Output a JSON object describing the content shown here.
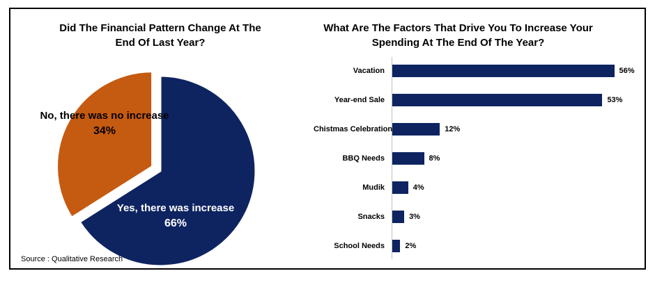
{
  "source_note": "Source : Qualitative Research",
  "colors": {
    "navy": "#0E2461",
    "orange": "#C55A11",
    "axis": "#BFBFBF",
    "border": "#000000"
  },
  "chart_data": [
    {
      "type": "pie",
      "title": "Did The Financial Pattern Change At The End Of Last Year?",
      "title_lines": [
        "Did The Financial Pattern Change At The",
        "End Of Last Year?"
      ],
      "start_angle_deg": 0,
      "direction": "clockwise",
      "legend": "none",
      "slices": [
        {
          "id": "yes",
          "label": "Yes, there was increase",
          "value": 66,
          "value_label": "66%",
          "color": "#0E2461",
          "label_color": "#FFFFFF",
          "exploded": false
        },
        {
          "id": "no",
          "label": "No, there was no increase",
          "value": 34,
          "value_label": "34%",
          "color": "#C55A11",
          "label_color": "#000000",
          "exploded": true
        }
      ]
    },
    {
      "type": "bar",
      "orientation": "horizontal",
      "title": "What Are The Factors That Drive You To Increase Your Spending At The End Of The Year?",
      "title_lines": [
        "What Are The Factors That Drive You To Increase Your",
        "Spending At The End Of The Year?"
      ],
      "categories": [
        "Vacation",
        "Year-end Sale",
        "Chistmas Celebration",
        "BBQ Needs",
        "Mudik",
        "Snacks",
        "School Needs"
      ],
      "values": [
        56,
        53,
        12,
        8,
        4,
        3,
        2
      ],
      "value_labels": [
        "56%",
        "53%",
        "12%",
        "8%",
        "4%",
        "3%",
        "2%"
      ],
      "bar_color": "#0E2461",
      "xlim": [
        0,
        64
      ],
      "grid": false,
      "legend": "none"
    }
  ]
}
